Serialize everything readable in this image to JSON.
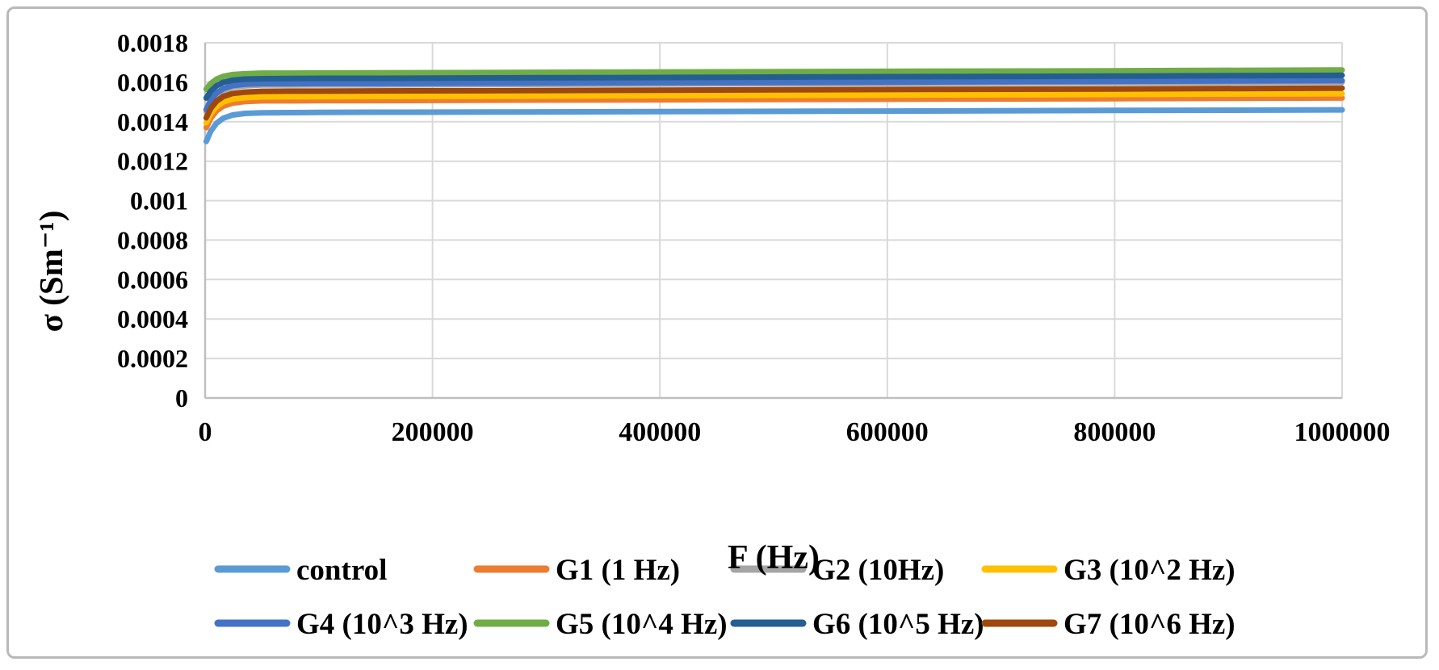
{
  "chart_data": {
    "type": "line",
    "title": "",
    "xlabel": "F (Hz)",
    "ylabel": "σ (Sm⁻¹)",
    "xlim": [
      0,
      1000000
    ],
    "ylim": [
      0,
      0.0018
    ],
    "grid": true,
    "legend_position": "bottom",
    "x_ticks": [
      0,
      200000,
      400000,
      600000,
      800000,
      1000000
    ],
    "x_tick_labels": [
      "0",
      "200000",
      "400000",
      "600000",
      "800000",
      "1000000"
    ],
    "y_ticks": [
      0,
      0.0002,
      0.0004,
      0.0006,
      0.0008,
      0.001,
      0.0012,
      0.0014,
      0.0016,
      0.0018
    ],
    "y_tick_labels": [
      "0",
      "0.0002",
      "0.0004",
      "0.0006",
      "0.0008",
      "0.001",
      "0.0012",
      "0.0014",
      "0.0016",
      "0.0018"
    ],
    "x": [
      1000,
      5000,
      10000,
      16000,
      24000,
      35000,
      50000,
      75000,
      100000,
      150000,
      250000,
      400000,
      600000,
      800000,
      1000000
    ],
    "series": [
      {
        "id": "control",
        "name": "control",
        "color": "#5B9BD5",
        "values": [
          0.0013,
          0.001352,
          0.001392,
          0.001418,
          0.001434,
          0.001442,
          0.001445,
          0.001446,
          0.001447,
          0.001448,
          0.001449,
          0.001451,
          0.001454,
          0.001457,
          0.00146
        ]
      },
      {
        "id": "g1",
        "name": "G1 (1 Hz)",
        "color": "#ED7D31",
        "values": [
          0.00137,
          0.001418,
          0.001455,
          0.001479,
          0.001494,
          0.001502,
          0.001506,
          0.001506,
          0.001507,
          0.001507,
          0.001509,
          0.001511,
          0.001514,
          0.001517,
          0.00152
        ]
      },
      {
        "id": "g2",
        "name": "G2 (10Hz)",
        "color": "#A5A5A5",
        "values": [
          0.00145,
          0.001498,
          0.001535,
          0.001559,
          0.001574,
          0.001582,
          0.001586,
          0.001586,
          0.001587,
          0.001587,
          0.001589,
          0.001591,
          0.001594,
          0.001597,
          0.0016
        ]
      },
      {
        "id": "g3",
        "name": "G3 (10^2 Hz)",
        "color": "#FFC000",
        "values": [
          0.001395,
          0.001442,
          0.001477,
          0.0015,
          0.001515,
          0.001522,
          0.001526,
          0.001527,
          0.001527,
          0.001528,
          0.001529,
          0.001532,
          0.001535,
          0.001538,
          0.001542
        ]
      },
      {
        "id": "g4",
        "name": "G4 (10^3 Hz)",
        "color": "#4472C4",
        "values": [
          0.001462,
          0.001509,
          0.001545,
          0.001568,
          0.001583,
          0.00159,
          0.001593,
          0.001593,
          0.001594,
          0.001594,
          0.001596,
          0.001598,
          0.001601,
          0.001605,
          0.001608
        ]
      },
      {
        "id": "g5",
        "name": "G5 (10^4 Hz)",
        "color": "#70AD47",
        "values": [
          0.001565,
          0.001594,
          0.001616,
          0.00163,
          0.001639,
          0.001643,
          0.001646,
          0.001646,
          0.001647,
          0.001648,
          0.001649,
          0.001652,
          0.001655,
          0.001658,
          0.001662
        ]
      },
      {
        "id": "g6",
        "name": "G6 (10^5 Hz)",
        "color": "#255E91",
        "values": [
          0.00152,
          0.001555,
          0.001582,
          0.0016,
          0.00161,
          0.001616,
          0.001618,
          0.001619,
          0.00162,
          0.00162,
          0.001622,
          0.001624,
          0.001628,
          0.001631,
          0.001635
        ]
      },
      {
        "id": "g7",
        "name": "G7 (10^6 Hz)",
        "color": "#9E480E",
        "values": [
          0.00142,
          0.001468,
          0.001504,
          0.001528,
          0.001543,
          0.00155,
          0.001554,
          0.001555,
          0.001555,
          0.001556,
          0.001557,
          0.00156,
          0.001563,
          0.001566,
          0.00157
        ]
      }
    ]
  }
}
